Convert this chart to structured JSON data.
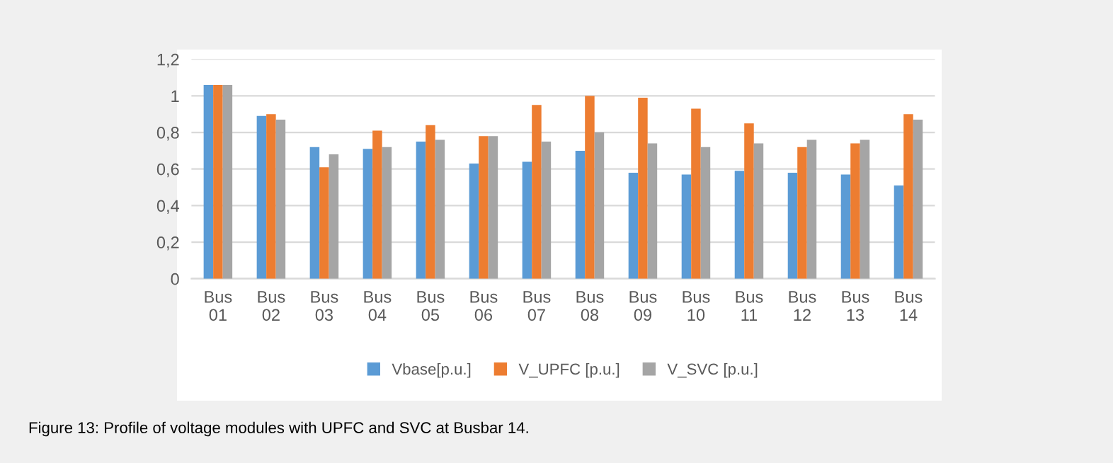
{
  "chart_data": {
    "type": "bar",
    "categories": [
      "Bus\n01",
      "Bus\n02",
      "Bus\n03",
      "Bus\n04",
      "Bus\n05",
      "Bus\n06",
      "Bus\n07",
      "Bus\n08",
      "Bus\n09",
      "Bus\n10",
      "Bus\n11",
      "Bus\n12",
      "Bus\n13",
      "Bus\n14"
    ],
    "series": [
      {
        "name": "Vbase[p.u.]",
        "color": "#5b9bd5",
        "values": [
          1.06,
          0.89,
          0.72,
          0.71,
          0.75,
          0.63,
          0.64,
          0.7,
          0.58,
          0.57,
          0.59,
          0.58,
          0.57,
          0.51
        ]
      },
      {
        "name": "V_UPFC [p.u.]",
        "color": "#ed7d31",
        "values": [
          1.06,
          0.9,
          0.61,
          0.81,
          0.84,
          0.78,
          0.95,
          1.0,
          0.99,
          0.93,
          0.85,
          0.72,
          0.74,
          0.9
        ]
      },
      {
        "name": "V_SVC [p.u.]",
        "color": "#a5a5a5",
        "values": [
          1.06,
          0.87,
          0.68,
          0.72,
          0.76,
          0.78,
          0.75,
          0.8,
          0.74,
          0.72,
          0.74,
          0.76,
          0.76,
          0.87
        ]
      }
    ],
    "ylim": [
      0,
      1.2
    ],
    "yticks": [
      0,
      {
        "value": 0.2,
        "label": "0,2"
      },
      {
        "value": 0.4,
        "label": "0,4"
      },
      {
        "value": 0.6,
        "label": "0,6"
      },
      {
        "value": 0.8,
        "label": "0,8"
      },
      1,
      {
        "value": 1.2,
        "label": "1,2"
      }
    ],
    "grid": "y",
    "legend": "bottom",
    "annotations": [
      "Figure 13: Profile of voltage modules with UPFC and SVC at Busbar 14."
    ]
  }
}
